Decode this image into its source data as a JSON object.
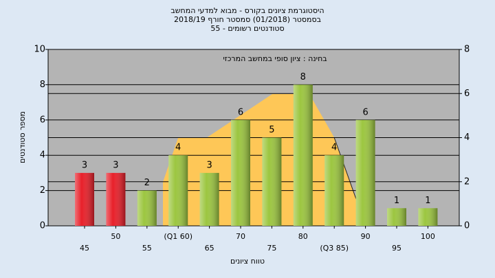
{
  "chart_data": {
    "type": "bar",
    "title": [
      "היסטוגרמת ציונים בקורס - מבוא למדעי המחשב",
      "בסמסטר  (01/2018)  סמסטר חורף 2018/19",
      "55 - סטודנטים רשומים"
    ],
    "annotation": "בחינה : ציון סופי במחשב המרכזי",
    "x_label": "טווח ציונים",
    "y_label": "מספר סטודנטים",
    "categories": [
      "45",
      "50",
      "55",
      "(Q1 60)",
      "65",
      "70",
      "75",
      "80",
      "(Q3 85)",
      "90",
      "95",
      "100"
    ],
    "values": [
      3,
      3,
      2,
      4,
      3,
      6,
      5,
      8,
      4,
      6,
      1,
      1
    ],
    "colors": [
      "#e8202a",
      "#e8202a",
      "#9cc640",
      "#9cc640",
      "#9cc640",
      "#9cc640",
      "#9cc640",
      "#9cc640",
      "#9cc640",
      "#9cc640",
      "#9cc640",
      "#9cc640"
    ],
    "ylim": [
      0,
      10
    ],
    "yticks": [
      0,
      2,
      4,
      6,
      8,
      10
    ],
    "y2lim": [
      0,
      8
    ],
    "y2ticks": [
      0,
      2,
      4,
      6,
      8
    ],
    "grid": true
  }
}
